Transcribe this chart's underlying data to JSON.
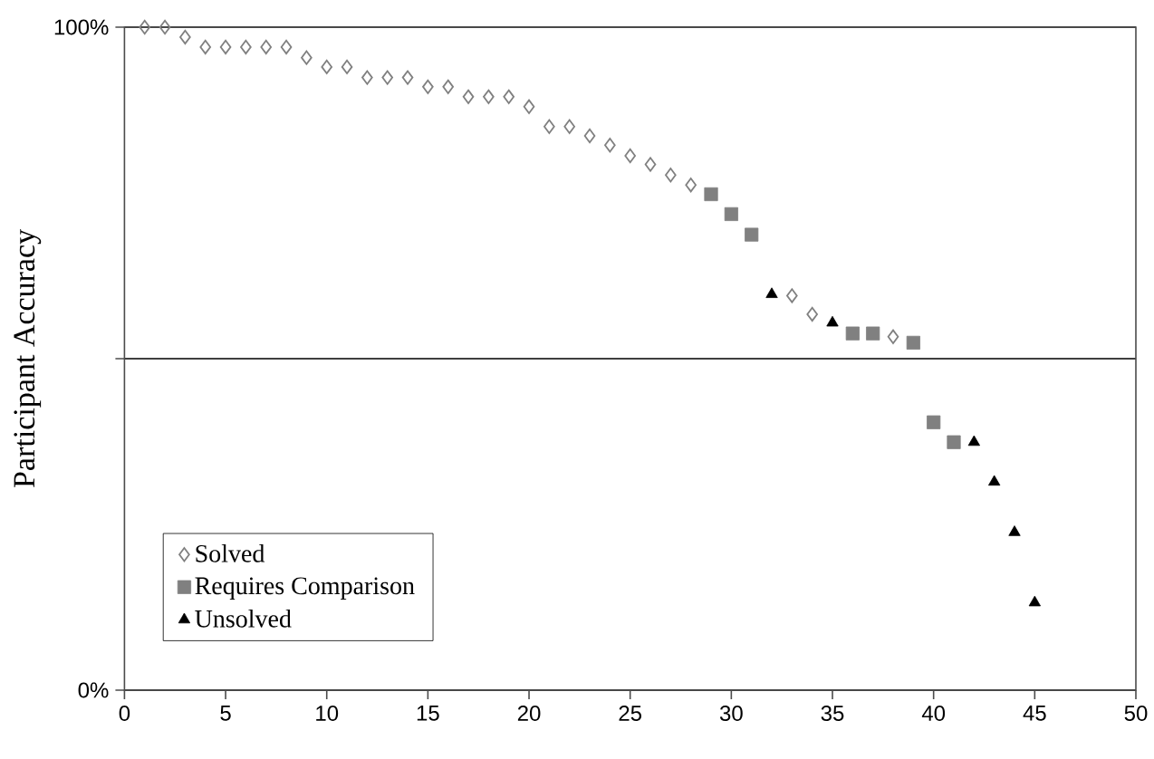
{
  "chart_data": {
    "type": "scatter",
    "ylabel": "Participant Accuracy",
    "xlim": [
      0,
      50
    ],
    "xticks": [
      0,
      5,
      10,
      15,
      20,
      25,
      30,
      35,
      40,
      45,
      50
    ],
    "ylim": [
      0,
      100
    ],
    "yticks": [
      {
        "value": 0,
        "label": "0%"
      },
      {
        "value": 50,
        "label": null
      },
      {
        "value": 100,
        "label": "100%"
      }
    ],
    "grid": "y",
    "legend": "bottom left",
    "series": [
      {
        "name": "Solved",
        "color": "#808080",
        "marker": "diamond",
        "x": [
          1,
          2,
          3,
          4,
          5,
          6,
          7,
          8,
          9,
          10,
          11,
          12,
          13,
          14,
          15,
          16,
          17,
          18,
          19,
          20,
          21,
          22,
          23,
          24,
          25,
          26,
          27,
          28,
          33,
          34,
          38
        ],
        "values": [
          100,
          100,
          98.5,
          97,
          97,
          97,
          97,
          97,
          95.4,
          94,
          94,
          92.4,
          92.4,
          92.4,
          91,
          91,
          89.5,
          89.5,
          89.5,
          88,
          85,
          85,
          83.6,
          82.2,
          80.6,
          79.3,
          77.7,
          76.2,
          59.5,
          56.7,
          53.3
        ]
      },
      {
        "name": "Requires Comparison",
        "color": "#808080",
        "marker": "square",
        "x": [
          29,
          30,
          31,
          36,
          37,
          39,
          40,
          41
        ],
        "values": [
          74.8,
          71.8,
          68.7,
          53.8,
          53.8,
          52.4,
          40.4,
          37.4
        ]
      },
      {
        "name": "Unsolved",
        "color": "#000000",
        "marker": "triangle",
        "x": [
          32,
          35,
          42,
          43,
          44,
          45
        ],
        "values": [
          59.7,
          55.4,
          37.4,
          31.4,
          23.8,
          13.2
        ]
      }
    ]
  }
}
